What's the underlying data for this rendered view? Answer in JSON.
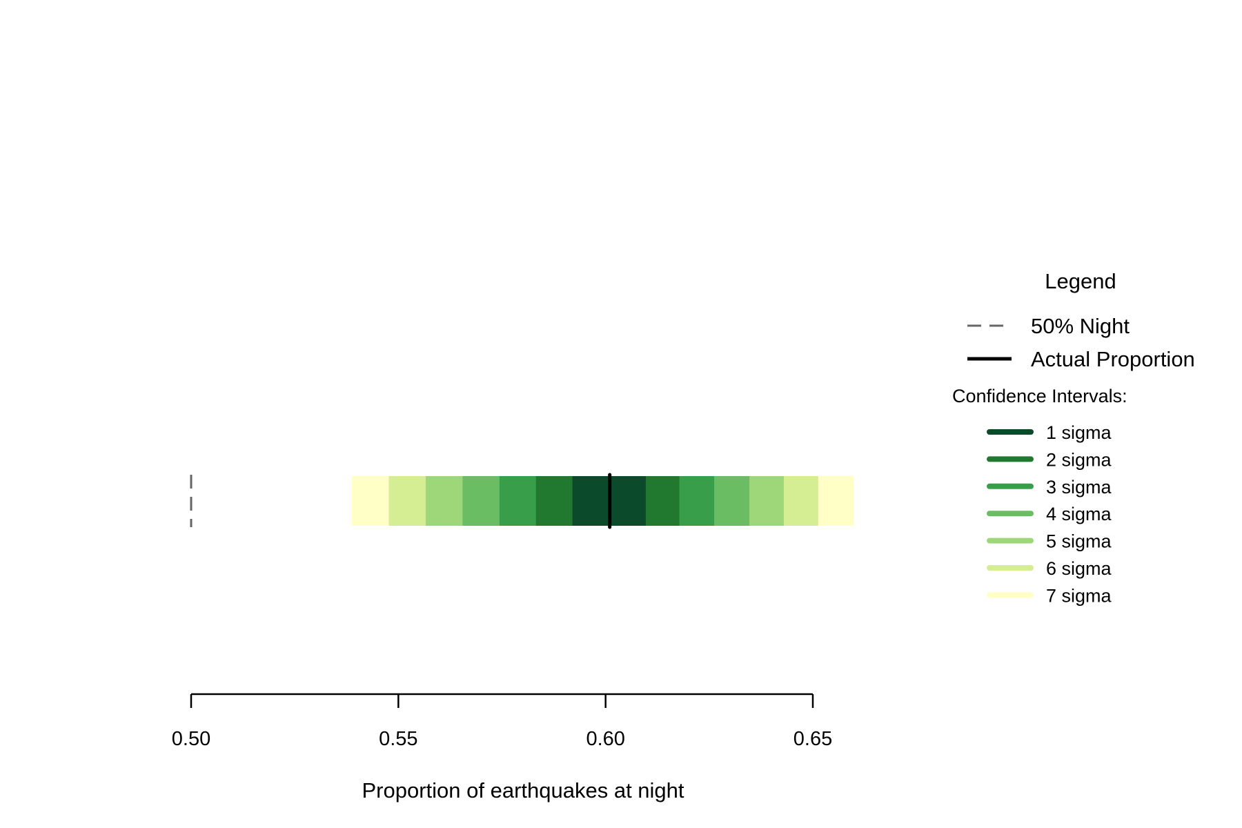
{
  "chart_data": {
    "type": "interval-band",
    "xlabel": "Proportion of earthquakes at night",
    "xlim": [
      0.5,
      0.66
    ],
    "ticks": [
      {
        "value": 0.5,
        "label": "0.50"
      },
      {
        "value": 0.55,
        "label": "0.55"
      },
      {
        "value": 0.6,
        "label": "0.60"
      },
      {
        "value": 0.65,
        "label": "0.65"
      }
    ],
    "reference_line": {
      "x": 0.5,
      "label": "50% Night",
      "color": "#666666",
      "style": "dashed"
    },
    "actual_proportion": {
      "x": 0.601,
      "label": "Actual Proportion",
      "color": "#000000"
    },
    "intervals": [
      {
        "sigma": 7,
        "label": "7 sigma",
        "lo": 0.5388,
        "hi": 0.6598,
        "color": "#ffffc6"
      },
      {
        "sigma": 6,
        "label": "6 sigma",
        "lo": 0.5477,
        "hi": 0.6513,
        "color": "#d5ee94"
      },
      {
        "sigma": 5,
        "label": "5 sigma",
        "lo": 0.5566,
        "hi": 0.643,
        "color": "#9ed77a"
      },
      {
        "sigma": 4,
        "label": "4 sigma",
        "lo": 0.5655,
        "hi": 0.6347,
        "color": "#6abd63"
      },
      {
        "sigma": 3,
        "label": "3 sigma",
        "lo": 0.5744,
        "hi": 0.6262,
        "color": "#389e49"
      },
      {
        "sigma": 2,
        "label": "2 sigma",
        "lo": 0.5832,
        "hi": 0.6178,
        "color": "#21782f"
      },
      {
        "sigma": 1,
        "label": "1 sigma",
        "lo": 0.592,
        "hi": 0.6097,
        "color": "#0b4a2b"
      }
    ],
    "legend": {
      "title": "Legend",
      "subtitle": "Confidence Intervals:",
      "placement": "right"
    }
  }
}
